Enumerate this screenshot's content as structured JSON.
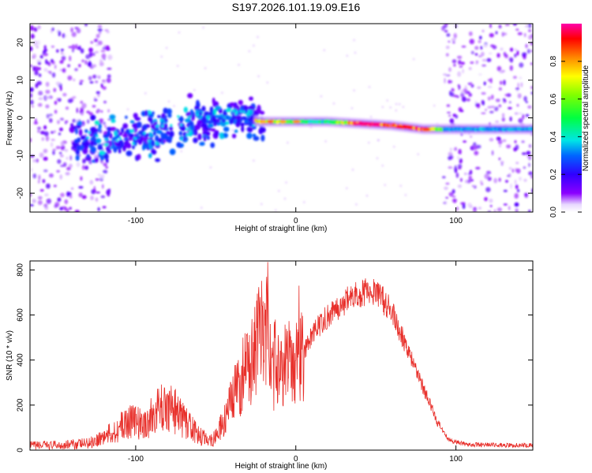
{
  "title": "S197.2026.101.19.09.E16",
  "chart_data": [
    {
      "type": "heatmap",
      "title": "S197.2026.101.19.09.E16",
      "xlabel": "Height of straight line (km)",
      "ylabel": "Frequency (Hz)",
      "xlim": [
        -166,
        148
      ],
      "ylim": [
        -25,
        25
      ],
      "xticks": [
        -100,
        0,
        100
      ],
      "yticks": [
        -20,
        -10,
        0,
        10,
        20
      ],
      "grid": false,
      "colorbar": {
        "label": "Normalized spectral amplitude",
        "range": [
          0.0,
          1.0
        ],
        "ticks": [
          0.0,
          0.2,
          0.4,
          0.6,
          0.8
        ],
        "tick_labels": [
          "0.0",
          "0.2",
          "0.4",
          "0.6",
          "0.8"
        ]
      },
      "ridge": {
        "description_points_x": [
          -120,
          -100,
          -80,
          -60,
          -40,
          -20,
          0,
          20,
          40,
          60,
          80,
          100,
          148
        ],
        "frequency_hz": [
          -6,
          -5,
          -3,
          -1,
          0,
          -1,
          -1,
          -1,
          -1.5,
          -2,
          -3,
          -3,
          -3
        ],
        "amplitude": [
          0.15,
          0.2,
          0.3,
          0.35,
          0.4,
          0.85,
          0.5,
          0.45,
          0.98,
          0.95,
          0.9,
          0.35,
          0.3
        ]
      }
    },
    {
      "type": "line",
      "xlabel": "Height of straight line (km)",
      "ylabel": "SNR (10 * v/v)",
      "xlim": [
        -166,
        148
      ],
      "ylim": [
        0,
        840
      ],
      "xticks": [
        -100,
        0,
        100
      ],
      "yticks": [
        0,
        200,
        400,
        600,
        800
      ],
      "grid": false,
      "series": [
        {
          "name": "SNR",
          "color": "#e8302b",
          "x": [
            -166,
            -150,
            -130,
            -115,
            -103,
            -95,
            -85,
            -78,
            -70,
            -60,
            -52,
            -45,
            -38,
            -32,
            -26,
            -22,
            -18,
            -15,
            -12,
            -8,
            -4,
            0,
            5,
            10,
            18,
            25,
            35,
            42,
            47,
            52,
            60,
            70,
            80,
            88,
            95,
            100,
            110,
            130,
            148
          ],
          "values": [
            20,
            22,
            30,
            75,
            135,
            110,
            185,
            195,
            130,
            60,
            45,
            120,
            250,
            350,
            420,
            500,
            560,
            320,
            420,
            370,
            390,
            400,
            430,
            510,
            580,
            630,
            680,
            700,
            710,
            690,
            610,
            450,
            270,
            130,
            50,
            35,
            25,
            22,
            22
          ],
          "spikes": [
            {
              "x": -17.5,
              "y": 835
            },
            {
              "x": -21,
              "y": 640
            },
            {
              "x": 2,
              "y": 730
            },
            {
              "x": -80,
              "y": 250
            }
          ]
        }
      ]
    }
  ]
}
